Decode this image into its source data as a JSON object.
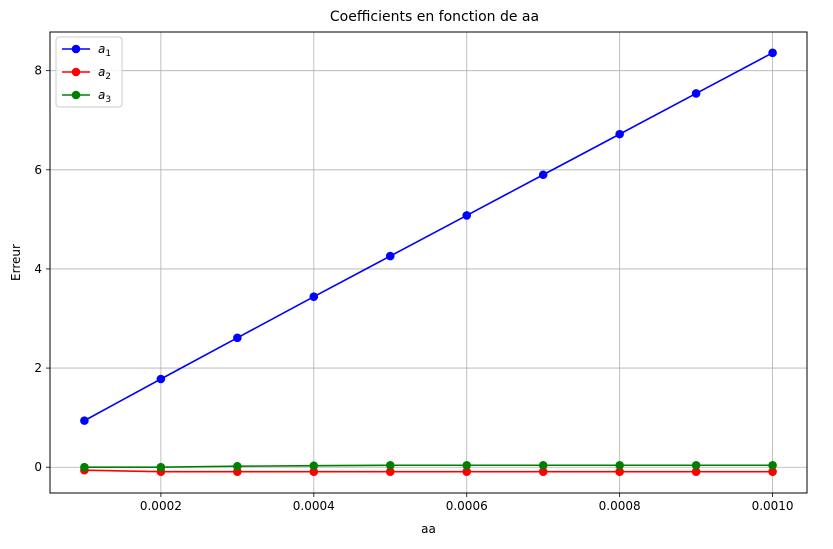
{
  "chart_data": {
    "type": "line",
    "title": "Coefficients en fonction de aa",
    "xlabel": "aa",
    "ylabel": "Erreur",
    "x": [
      0.0001,
      0.0002,
      0.0003,
      0.0004,
      0.0005,
      0.0006,
      0.0007,
      0.0008,
      0.0009,
      0.001
    ],
    "xlim": [
      5.5e-05,
      0.001045
    ],
    "ylim": [
      -0.52,
      8.78
    ],
    "xticks": [
      0.0002,
      0.0004,
      0.0006,
      0.0008,
      0.001
    ],
    "xtick_labels": [
      "0.0002",
      "0.0004",
      "0.0006",
      "0.0008",
      "0.0010"
    ],
    "yticks": [
      0,
      2,
      4,
      6,
      8
    ],
    "ytick_labels": [
      "0",
      "2",
      "4",
      "6",
      "8"
    ],
    "grid": true,
    "legend_position": "top-left",
    "series": [
      {
        "name": "a",
        "subscript": "1",
        "color": "#0000ff",
        "marker": "circle",
        "values": [
          0.94,
          1.78,
          2.61,
          3.44,
          4.26,
          5.08,
          5.9,
          6.72,
          7.54,
          8.36
        ]
      },
      {
        "name": "a",
        "subscript": "2",
        "color": "#ff0000",
        "marker": "circle",
        "values": [
          -0.06,
          -0.09,
          -0.09,
          -0.09,
          -0.09,
          -0.09,
          -0.09,
          -0.09,
          -0.09,
          -0.09
        ]
      },
      {
        "name": "a",
        "subscript": "3",
        "color": "#008000",
        "marker": "circle",
        "values": [
          0.0,
          0.0,
          0.02,
          0.03,
          0.04,
          0.04,
          0.04,
          0.04,
          0.04,
          0.04
        ]
      }
    ]
  }
}
